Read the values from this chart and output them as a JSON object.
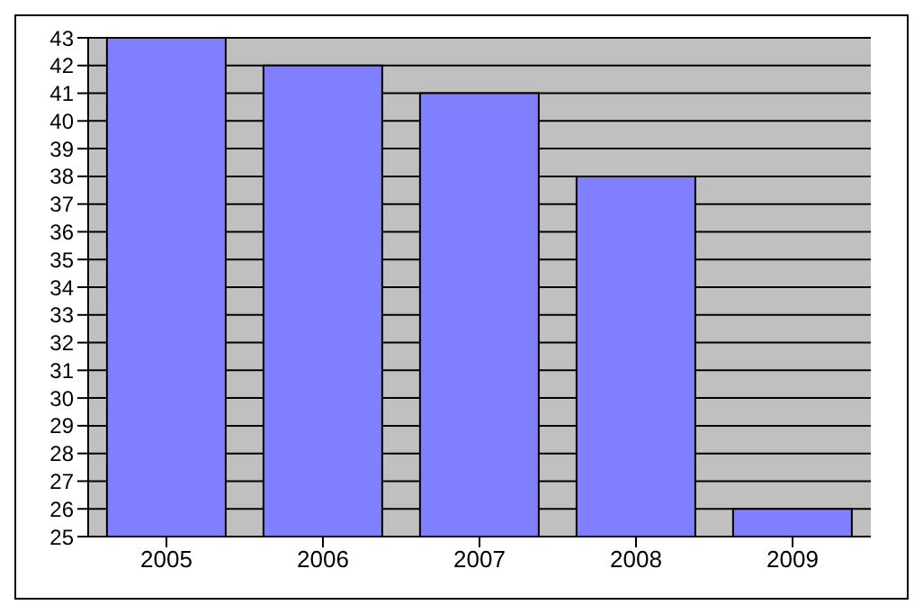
{
  "chart_data": {
    "type": "bar",
    "categories": [
      "2005",
      "2006",
      "2007",
      "2008",
      "2009"
    ],
    "values": [
      43,
      42,
      41,
      38,
      26
    ],
    "color": "#8080ff",
    "ylim": [
      25,
      43
    ],
    "yticks": [
      25,
      26,
      27,
      28,
      29,
      30,
      31,
      32,
      33,
      34,
      35,
      36,
      37,
      38,
      39,
      40,
      41,
      42,
      43
    ],
    "grid": "y"
  }
}
